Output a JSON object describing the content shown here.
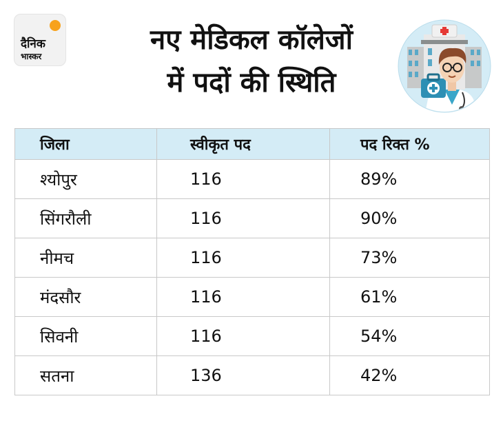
{
  "brand": {
    "line1": "दैनिक",
    "line2": "भास्कर"
  },
  "title": {
    "line1": "नए मेडिकल कॉलेजों",
    "line2": "में पदों की स्थिति"
  },
  "illustration": {
    "icon": "hospital-doctor-icon"
  },
  "colors": {
    "header_bg": "#d4ecf6",
    "border": "#c8c8c8",
    "logo_sun": "#f7a21b"
  },
  "table": {
    "headers": [
      "जिला",
      "स्वीकृत पद",
      "पद रिक्त %"
    ],
    "rows": [
      [
        "श्योपुर",
        "116",
        "89%"
      ],
      [
        "सिंगरौली",
        "116",
        "90%"
      ],
      [
        "नीमच",
        "116",
        "73%"
      ],
      [
        "मंदसौर",
        "116",
        "61%"
      ],
      [
        "सिवनी",
        "116",
        "54%"
      ],
      [
        "सतना",
        "136",
        "42%"
      ]
    ]
  }
}
